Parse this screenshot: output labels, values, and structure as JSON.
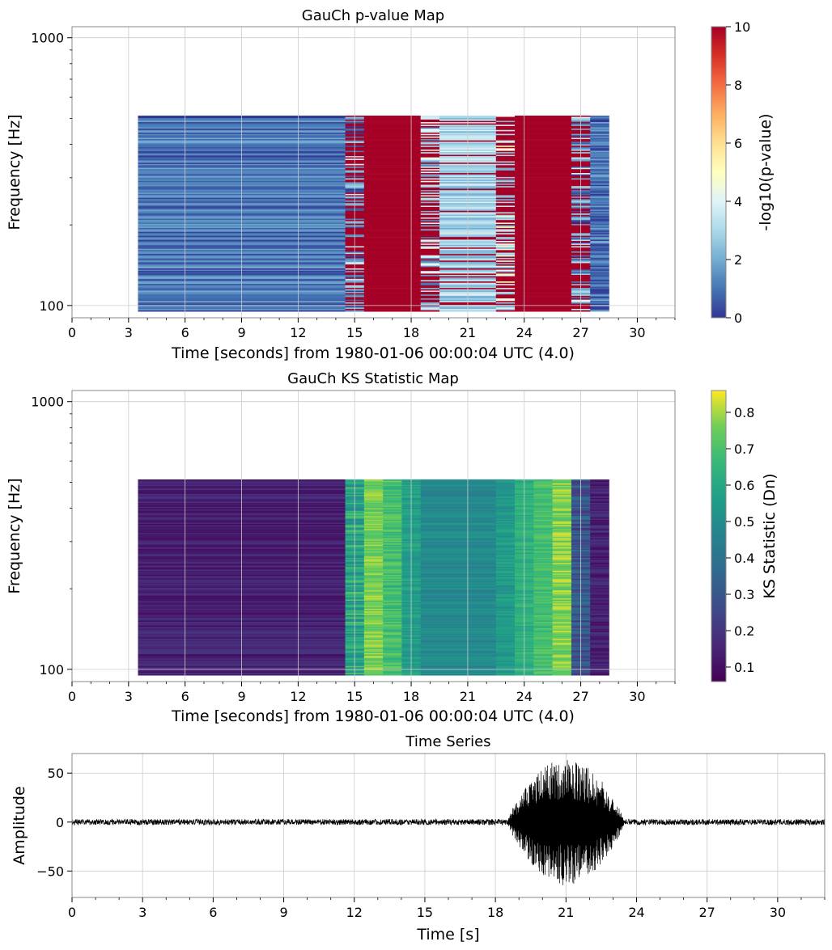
{
  "chart_data": [
    {
      "type": "heatmap",
      "title": "GauCh p-value Map",
      "xlabel": "Time [seconds] from 1980-01-06 00:00:04 UTC (4.0)",
      "ylabel": "Frequency [Hz]",
      "xlim": [
        0,
        32
      ],
      "ylim": [
        90,
        1100
      ],
      "yscale": "log",
      "x_ticks": [
        "0",
        "3",
        "6",
        "9",
        "12",
        "15",
        "18",
        "21",
        "24",
        "27",
        "30"
      ],
      "y_ticks": [
        "100",
        "1000"
      ],
      "grid": true,
      "data_extent": {
        "time": [
          3.5,
          28.5
        ],
        "frequency": [
          95,
          512
        ]
      },
      "colorbar": {
        "label": "-log10(p-value)",
        "colormap": "RdYlBu_r",
        "range": [
          0,
          10
        ],
        "ticks": [
          "0",
          "2",
          "4",
          "6",
          "8",
          "10"
        ]
      },
      "segments": [
        {
          "t": [
            3.5,
            14.5
          ],
          "level": "low",
          "value_range": [
            0,
            2
          ]
        },
        {
          "t": [
            14.5,
            15.5
          ],
          "level": "mixed",
          "value_range": [
            0,
            10
          ]
        },
        {
          "t": [
            15.5,
            18.5
          ],
          "level": "high",
          "value_range": [
            10,
            10
          ]
        },
        {
          "t": [
            18.5,
            19.5
          ],
          "level": "mixed",
          "value_range": [
            1,
            10
          ]
        },
        {
          "t": [
            19.5,
            22.5
          ],
          "level": "mid",
          "value_range": [
            2,
            4
          ]
        },
        {
          "t": [
            22.5,
            23.5
          ],
          "level": "mixed",
          "value_range": [
            2,
            10
          ]
        },
        {
          "t": [
            23.5,
            26.5
          ],
          "level": "high",
          "value_range": [
            10,
            10
          ]
        },
        {
          "t": [
            26.5,
            27.5
          ],
          "level": "mixed",
          "value_range": [
            0,
            10
          ]
        },
        {
          "t": [
            27.5,
            28.5
          ],
          "level": "low",
          "value_range": [
            0,
            2
          ]
        }
      ]
    },
    {
      "type": "heatmap",
      "title": "GauCh KS Statistic Map",
      "xlabel": "Time [seconds] from 1980-01-06 00:00:04 UTC (4.0)",
      "ylabel": "Frequency [Hz]",
      "xlim": [
        0,
        32
      ],
      "ylim": [
        90,
        1100
      ],
      "yscale": "log",
      "x_ticks": [
        "0",
        "3",
        "6",
        "9",
        "12",
        "15",
        "18",
        "21",
        "24",
        "27",
        "30"
      ],
      "y_ticks": [
        "100",
        "1000"
      ],
      "grid": true,
      "data_extent": {
        "time": [
          3.5,
          28.5
        ],
        "frequency": [
          95,
          512
        ]
      },
      "colorbar": {
        "label": "KS Statistic (Dn)",
        "colormap": "viridis",
        "range": [
          0.06,
          0.86
        ],
        "ticks": [
          "0.1",
          "0.2",
          "0.3",
          "0.4",
          "0.5",
          "0.6",
          "0.7",
          "0.8"
        ]
      },
      "segments": [
        {
          "t": [
            3.5,
            14.5
          ],
          "value_range": [
            0.08,
            0.2
          ]
        },
        {
          "t": [
            14.5,
            15.5
          ],
          "value_range": [
            0.45,
            0.72
          ]
        },
        {
          "t": [
            15.5,
            16.5
          ],
          "value_range": [
            0.7,
            0.82
          ]
        },
        {
          "t": [
            16.5,
            17.5
          ],
          "value_range": [
            0.62,
            0.76
          ]
        },
        {
          "t": [
            17.5,
            18.5
          ],
          "value_range": [
            0.5,
            0.62
          ]
        },
        {
          "t": [
            18.5,
            22.5
          ],
          "value_range": [
            0.44,
            0.54
          ]
        },
        {
          "t": [
            22.5,
            23.5
          ],
          "value_range": [
            0.5,
            0.6
          ]
        },
        {
          "t": [
            23.5,
            24.5
          ],
          "value_range": [
            0.58,
            0.68
          ]
        },
        {
          "t": [
            24.5,
            25.5
          ],
          "value_range": [
            0.64,
            0.74
          ]
        },
        {
          "t": [
            25.5,
            26.5
          ],
          "value_range": [
            0.7,
            0.84
          ]
        },
        {
          "t": [
            26.5,
            27.5
          ],
          "value_range": [
            0.2,
            0.4
          ]
        },
        {
          "t": [
            27.5,
            28.5
          ],
          "value_range": [
            0.08,
            0.2
          ]
        }
      ]
    },
    {
      "type": "line",
      "title": "Time Series",
      "xlabel": "Time [s]",
      "ylabel": "Amplitude",
      "xlim": [
        0,
        32
      ],
      "ylim": [
        -77,
        70
      ],
      "x_ticks": [
        "0",
        "3",
        "6",
        "9",
        "12",
        "15",
        "18",
        "21",
        "24",
        "27",
        "30"
      ],
      "y_ticks": [
        "50",
        "0",
        "−50"
      ],
      "grid": true,
      "series": [
        {
          "color": "#000000",
          "noise_amplitude": 3,
          "burst": {
            "t_start": 18.5,
            "t_end": 23.5,
            "peak_amplitude": 65
          }
        }
      ]
    }
  ]
}
